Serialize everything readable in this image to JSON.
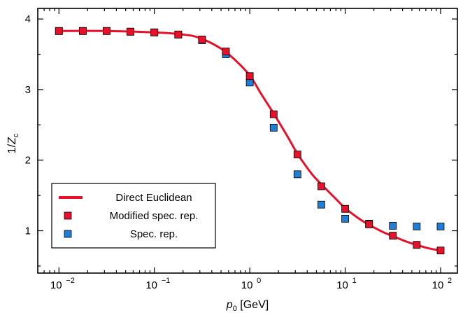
{
  "chart_data": {
    "type": "scatter",
    "xscale": "log",
    "xlim": [
      0.006,
      150
    ],
    "ylim": [
      0.4,
      4.15
    ],
    "xlabel": {
      "var": "p",
      "sub": "0",
      "unit": " [GeV]"
    },
    "ylabel": {
      "pre": "1/",
      "var": "Z",
      "sub": "c"
    },
    "grid": false,
    "legend_position": "lower-left",
    "x_ticks": [
      {
        "value": 0.01,
        "label": "10",
        "exp": "−2"
      },
      {
        "value": 0.1,
        "label": "10",
        "exp": "−1"
      },
      {
        "value": 1,
        "label": "10",
        "exp": "0"
      },
      {
        "value": 10,
        "label": "10",
        "exp": "1"
      },
      {
        "value": 100,
        "label": "10",
        "exp": "2"
      }
    ],
    "y_ticks": [
      {
        "value": 1,
        "label": "1"
      },
      {
        "value": 2,
        "label": "2"
      },
      {
        "value": 3,
        "label": "3"
      },
      {
        "value": 4,
        "label": "4"
      }
    ],
    "series": [
      {
        "name": "Direct Euclidean",
        "kind": "line",
        "color": "#e8102a",
        "x": [
          0.01,
          0.03,
          0.1,
          0.2,
          0.3,
          0.5,
          0.7,
          1.0,
          1.3,
          1.8,
          2.5,
          3.2,
          4.5,
          6.0,
          8.0,
          10.0,
          14.0,
          18.0,
          25.0,
          32.0,
          45.0,
          56.0,
          75.0,
          100.0
        ],
        "y": [
          3.83,
          3.83,
          3.81,
          3.78,
          3.73,
          3.58,
          3.42,
          3.2,
          2.95,
          2.65,
          2.33,
          2.08,
          1.8,
          1.62,
          1.45,
          1.32,
          1.17,
          1.08,
          0.98,
          0.92,
          0.84,
          0.8,
          0.75,
          0.72
        ]
      },
      {
        "name": "Modified spec. rep.",
        "kind": "markers",
        "color": "#e8102a",
        "x": [
          0.01,
          0.0178,
          0.0316,
          0.0562,
          0.1,
          0.178,
          0.316,
          0.562,
          1.0,
          1.78,
          3.16,
          5.62,
          10.0,
          17.8,
          31.6,
          56.2,
          100.0
        ],
        "y": [
          3.83,
          3.83,
          3.83,
          3.82,
          3.81,
          3.78,
          3.71,
          3.54,
          3.19,
          2.65,
          2.08,
          1.63,
          1.31,
          1.09,
          0.93,
          0.8,
          0.72
        ]
      },
      {
        "name": "Spec. rep.",
        "kind": "markers",
        "color": "#1f7fd8",
        "x": [
          0.01,
          0.0178,
          0.0316,
          0.0562,
          0.1,
          0.178,
          0.316,
          0.562,
          1.0,
          1.78,
          3.16,
          5.62,
          10.0,
          17.8,
          31.6,
          56.2,
          100.0
        ],
        "y": [
          3.83,
          3.83,
          3.83,
          3.82,
          3.81,
          3.78,
          3.7,
          3.5,
          3.1,
          2.46,
          1.8,
          1.37,
          1.17,
          1.1,
          1.07,
          1.06,
          1.06
        ]
      }
    ]
  }
}
